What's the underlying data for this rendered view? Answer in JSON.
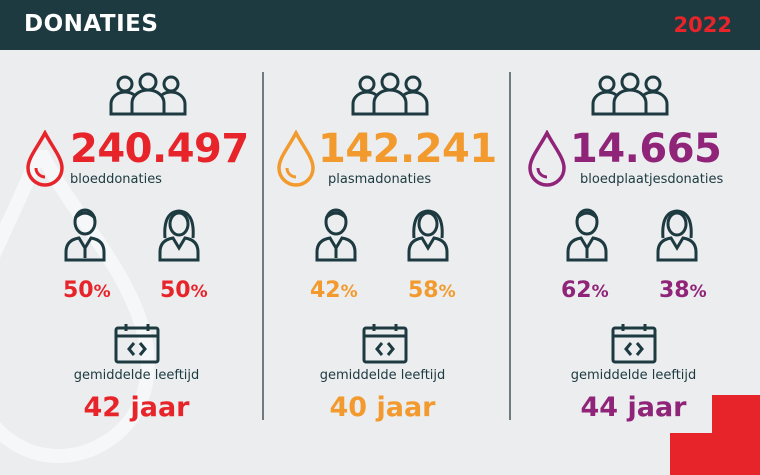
{
  "header": {
    "title": "DONATIES",
    "year": "2022"
  },
  "colors": {
    "header_bg": "#1d3a40",
    "red": "#e8242b",
    "orange": "#f29a2e",
    "purple": "#8f2478",
    "icon": "#1d3a40"
  },
  "icons": [
    "people-group-icon",
    "blood-drop-icon",
    "male-person-icon",
    "female-person-icon",
    "calendar-icon"
  ],
  "columns": [
    {
      "count": "240.497",
      "label": "bloeddonaties",
      "male_pct": "50",
      "female_pct": "50",
      "pct_unit": "%",
      "age_label": "gemiddelde leeftijd",
      "age": "42 jaar",
      "color": "#e8242b"
    },
    {
      "count": "142.241",
      "label": "plasmadonaties",
      "male_pct": "42",
      "female_pct": "58",
      "pct_unit": "%",
      "age_label": "gemiddelde leeftijd",
      "age": "40 jaar",
      "color": "#f29a2e"
    },
    {
      "count": "14.665",
      "label": "bloedplaatjesdonaties",
      "male_pct": "62",
      "female_pct": "38",
      "pct_unit": "%",
      "age_label": "gemiddelde leeftijd",
      "age": "44 jaar",
      "color": "#8f2478"
    }
  ]
}
